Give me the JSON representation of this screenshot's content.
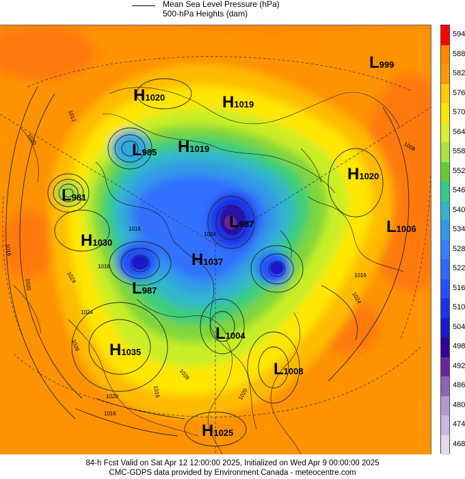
{
  "legend": {
    "line1": "Mean Sea Level Pressure (hPa)",
    "line2": "500-hPa Heights (dam)"
  },
  "colorbar": {
    "levels": [
      "594",
      "588",
      "582",
      "576",
      "570",
      "564",
      "558",
      "552",
      "546",
      "540",
      "534",
      "528",
      "522",
      "516",
      "510",
      "504",
      "498",
      "492",
      "486",
      "480",
      "474",
      "468"
    ],
    "colors": [
      "#ff0000",
      "#ff8a00",
      "#ff9900",
      "#ffcc00",
      "#ffe600",
      "#d9f230",
      "#a6e63c",
      "#66cc33",
      "#33cc88",
      "#33b2cc",
      "#3399e6",
      "#3380ff",
      "#3366ff",
      "#264dff",
      "#1a33e6",
      "#1a1acc",
      "#33009a",
      "#6a2599",
      "#8f66b3",
      "#b399cc",
      "#c9b8e0",
      "#e2d9f0"
    ]
  },
  "systems": [
    {
      "type": "H",
      "value": "1020"
    },
    {
      "type": "H",
      "value": "1019"
    },
    {
      "type": "L",
      "value": "999"
    },
    {
      "type": "L",
      "value": "985"
    },
    {
      "type": "H",
      "value": "1019"
    },
    {
      "type": "H",
      "value": "1020"
    },
    {
      "type": "L",
      "value": "981"
    },
    {
      "type": "L",
      "value": "987"
    },
    {
      "type": "L",
      "value": "1006"
    },
    {
      "type": "H",
      "value": "1030"
    },
    {
      "type": "H",
      "value": "1037"
    },
    {
      "type": "L",
      "value": "987"
    },
    {
      "type": "L",
      "value": "1004"
    },
    {
      "type": "H",
      "value": "1035"
    },
    {
      "type": "L",
      "value": "1008"
    },
    {
      "type": "H",
      "value": "1025"
    }
  ],
  "isobar_labels": [
    "1012",
    "1008",
    "1016",
    "1020",
    "1024",
    "1016",
    "1024",
    "1016",
    "1028",
    "1024",
    "1020",
    "1016",
    "1016",
    "1020",
    "1024",
    "1028",
    "1016",
    "1020"
  ],
  "footer": {
    "line1": "84-h Fcst Valid on Sat Apr 12 12:00:00 2025, Initialized on Wed Apr  9 00:00:00 2025",
    "line2": "CMC-GDPS data provided by Environment Canada - meteocentre.com"
  }
}
